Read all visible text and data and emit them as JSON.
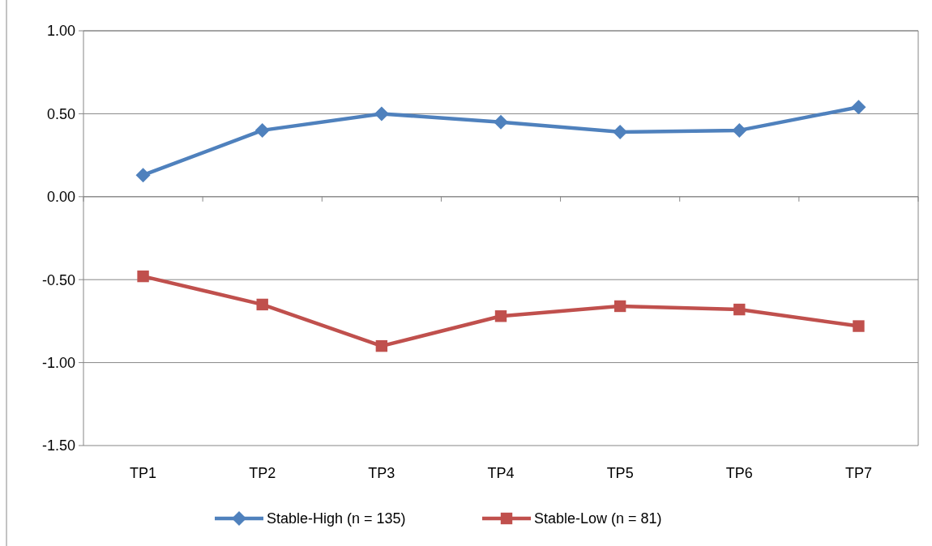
{
  "chart_data": {
    "type": "line",
    "categories": [
      "TP1",
      "TP2",
      "TP3",
      "TP4",
      "TP5",
      "TP6",
      "TP7"
    ],
    "series": [
      {
        "name": "Stable-High (n = 135)",
        "color": "#4f81bd",
        "marker": "diamond",
        "values": [
          0.13,
          0.4,
          0.5,
          0.45,
          0.39,
          0.4,
          0.54
        ]
      },
      {
        "name": "Stable-Low (n = 81)",
        "color": "#c0504d",
        "marker": "square",
        "values": [
          -0.48,
          -0.65,
          -0.9,
          -0.72,
          -0.66,
          -0.68,
          -0.78
        ]
      }
    ],
    "ylim": [
      -1.5,
      1.0
    ],
    "yticks": [
      {
        "value": -1.5,
        "label": "-1.50"
      },
      {
        "value": -1.0,
        "label": "-1.00"
      },
      {
        "value": -0.5,
        "label": "-0.50"
      },
      {
        "value": 0,
        "label": "0.00"
      },
      {
        "value": 0.5,
        "label": "0.50"
      },
      {
        "value": 1.0,
        "label": "1.00"
      }
    ],
    "grid": "y",
    "legend": "bottom",
    "line_style": "solid"
  }
}
